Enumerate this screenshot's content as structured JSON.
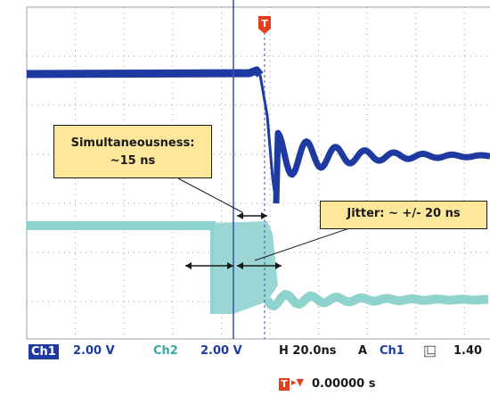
{
  "colors": {
    "ch1": "#1e3aa0",
    "ch2": "#8fd3cf",
    "grid": "#9aa0a8",
    "cursor": "#3a4fb0",
    "trigger": "#e0401b",
    "callout_bg": "#fde79a"
  },
  "trigger_marker": {
    "label": "T"
  },
  "annotations": {
    "simultaneousness": {
      "line1": "Simultaneousness:",
      "line2": "~15 ns"
    },
    "jitter": {
      "text": "Jitter: ~ +/- 20 ns"
    }
  },
  "status_bar": {
    "ch1_label": "Ch1",
    "ch1_scale": "2.00 V",
    "ch2_label": "Ch2",
    "ch2_scale": "2.00 V",
    "timebase": "H 20.0ns",
    "trigger_mode": "A",
    "trigger_source": "Ch1",
    "trigger_slope_icon": "falling-edge-icon",
    "trigger_slope_glyph": "⿺",
    "trigger_level": "1.40",
    "trigger_icon": "T",
    "trigger_position": "0.00000 s"
  }
}
